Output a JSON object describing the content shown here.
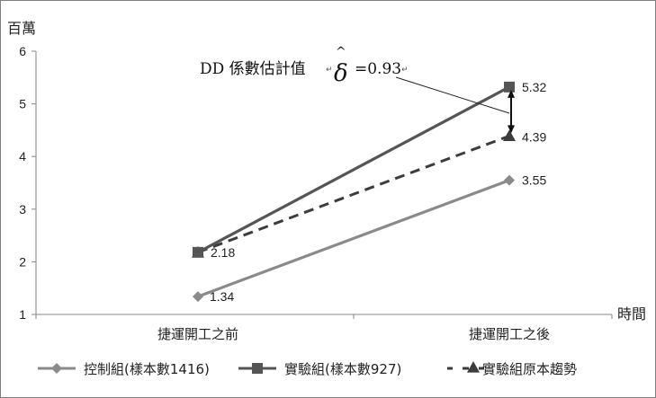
{
  "chart_data": {
    "type": "line",
    "ylabel": "百萬",
    "xlabel": "時間",
    "ylim": [
      1,
      6
    ],
    "yticks": [
      1,
      2,
      3,
      4,
      5,
      6
    ],
    "categories": [
      "捷運開工之前",
      "捷運開工之後"
    ],
    "series": [
      {
        "name": "控制組(樣本數1416)",
        "values": [
          1.34,
          3.55
        ],
        "color": "#8a8a8a",
        "marker": "diamond",
        "dash": "solid",
        "labels": [
          "1.34",
          "3.55"
        ]
      },
      {
        "name": "實驗組(樣本數927)",
        "values": [
          2.18,
          5.32
        ],
        "color": "#555555",
        "marker": "square",
        "dash": "solid",
        "labels": [
          "2.18",
          "5.32"
        ]
      },
      {
        "name": "實驗組原本趨勢",
        "values": [
          2.18,
          4.39
        ],
        "color": "#3c3c3c",
        "marker": "triangle",
        "dash": "dashed",
        "labels": [
          "",
          "4.39"
        ]
      }
    ],
    "annotation": {
      "prefix": "DD 係數估計值",
      "mark1": "↵",
      "symbol": "δ",
      "hat": "^",
      "equals": "=0.93",
      "mark2": "↵"
    },
    "legend_position": "bottom"
  }
}
